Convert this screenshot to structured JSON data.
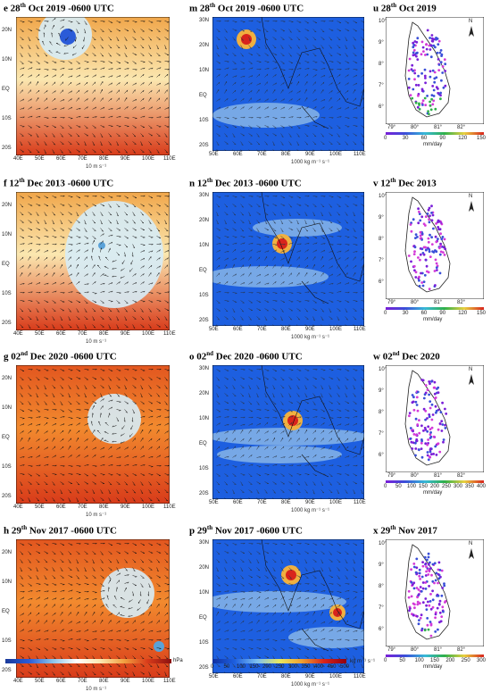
{
  "rows": [
    {
      "wind": {
        "letter": "e",
        "day": "28",
        "suffix": "th",
        "rest": " Oct 2019 -0600 UTC",
        "scale": "10 m s⁻¹",
        "cyclone": true
      },
      "moist": {
        "letter": "m",
        "day": "28",
        "suffix": "th",
        "rest": " Oct 2019 -0600 UTC",
        "scale": "1000 kg m⁻¹ s⁻¹"
      },
      "rain": {
        "letter": "u",
        "day": "28",
        "suffix": "th",
        "rest": " Oct 2019",
        "cb_ticks": [
          "0",
          "30",
          "60",
          "90",
          "120",
          "150"
        ],
        "unit": "mm/day"
      }
    },
    {
      "wind": {
        "letter": "f",
        "day": "12",
        "suffix": "th",
        "rest": " Dec 2013 -0600 UTC",
        "scale": "10 m s⁻¹",
        "cyclone": false
      },
      "moist": {
        "letter": "n",
        "day": "12",
        "suffix": "th",
        "rest": " Dec 2013 -0600 UTC",
        "scale": "1000 kg m⁻¹ s⁻¹"
      },
      "rain": {
        "letter": "v",
        "day": "12",
        "suffix": "th",
        "rest": " Dec 2013",
        "cb_ticks": [
          "0",
          "30",
          "60",
          "90",
          "120",
          "150"
        ],
        "unit": "mm/day"
      }
    },
    {
      "wind": {
        "letter": "g",
        "day": "02",
        "suffix": "nd",
        "rest": " Dec 2020 -0600 UTC",
        "scale": "10 m s⁻¹",
        "cyclone": false
      },
      "moist": {
        "letter": "o",
        "day": "02",
        "suffix": "nd",
        "rest": " Dec 2020 -0600 UTC",
        "scale": "1000 kg m⁻¹ s⁻¹"
      },
      "rain": {
        "letter": "w",
        "day": "02",
        "suffix": "nd",
        "rest": " Dec 2020",
        "cb_ticks": [
          "0",
          "50",
          "100",
          "150",
          "200",
          "250",
          "300",
          "350",
          "400"
        ],
        "unit": "mm/day"
      }
    },
    {
      "wind": {
        "letter": "h",
        "day": "29",
        "suffix": "th",
        "rest": " Nov 2017 -0600 UTC",
        "scale": "10 m s⁻¹",
        "cyclone": false
      },
      "moist": {
        "letter": "p",
        "day": "29",
        "suffix": "th",
        "rest": " Nov 2017 -0600 UTC",
        "scale": "1000 kg m⁻¹ s⁻¹"
      },
      "rain": {
        "letter": "x",
        "day": "29",
        "suffix": "th",
        "rest": " Nov 2017",
        "cb_ticks": [
          "0",
          "50",
          "100",
          "150",
          "200",
          "250",
          "300"
        ],
        "unit": "mm/day"
      }
    }
  ],
  "wind_axes": {
    "lat": [
      "20N",
      "10N",
      "EQ",
      "10S",
      "20S"
    ],
    "lon": [
      "40E",
      "50E",
      "60E",
      "70E",
      "80E",
      "90E",
      "100E",
      "110E"
    ]
  },
  "moist_axes": {
    "lat": [
      "30N",
      "20N",
      "10N",
      "EQ",
      "10S",
      "20S"
    ],
    "lon": [
      "50E",
      "60E",
      "70E",
      "80E",
      "90E",
      "100E",
      "110E"
    ]
  },
  "rain_axes": {
    "lat": [
      "10°",
      "9°",
      "8°",
      "7°",
      "6°"
    ],
    "lon": [
      "79°",
      "80°",
      "81°",
      "82°"
    ],
    "north": "N"
  },
  "slp_colorbar": {
    "unit": "hPa"
  },
  "flux_colorbar": {
    "ticks": [
      "0",
      "50",
      "100",
      "150",
      "200",
      "250",
      "300",
      "350",
      "400",
      "450",
      "500"
    ],
    "unit": "kg m⁻¹ s⁻¹"
  },
  "colors": {
    "slp_low": "#2a5bd8",
    "slp_mid": "#fbe7b0",
    "slp_high": "#d83b1a",
    "flux_bg": "#1d5fe0",
    "flux_high": "#d8241c",
    "rain_low": "#7a1fd8",
    "rain_mid": "#2fb04a",
    "rain_high": "#d8241c"
  }
}
